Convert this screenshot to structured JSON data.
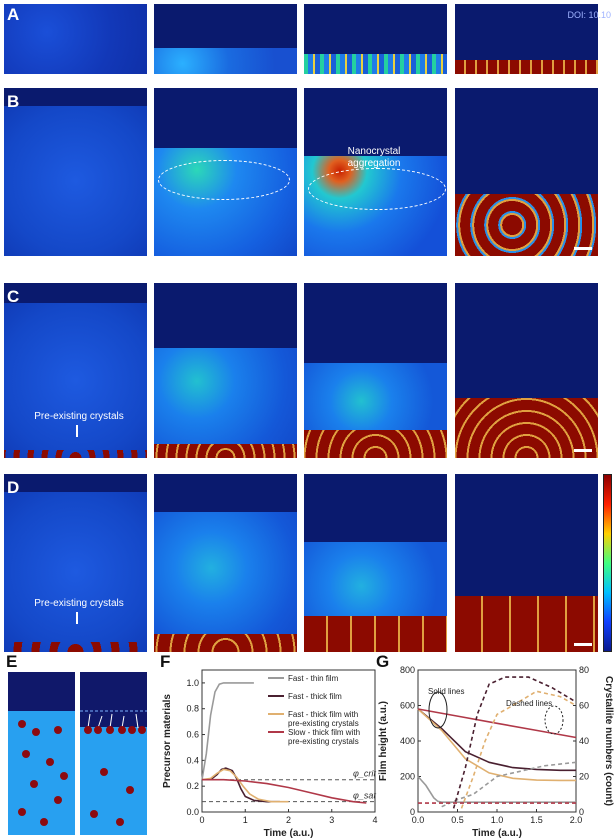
{
  "doi": "DOI: 10.10",
  "rows": [
    {
      "label": "A"
    },
    {
      "label": "B",
      "annotation": "Nanocrystal\naggregation"
    },
    {
      "label": "C",
      "annotation": "Pre-existing crystals"
    },
    {
      "label": "D",
      "annotation": "Pre-existing crystals"
    }
  ],
  "panel_e": {
    "label": "E"
  },
  "chart_data": [
    {
      "panel": "F",
      "type": "line",
      "xlabel": "Time (a.u.)",
      "ylabel": "Precursor materials",
      "xlim": [
        0,
        4
      ],
      "ylim": [
        0,
        1.1
      ],
      "xticks": [
        "0",
        "1",
        "2",
        "3",
        "4"
      ],
      "yticks": [
        "0.0",
        "0.2",
        "0.4",
        "0.6",
        "0.8",
        "1.0"
      ],
      "reference_lines": [
        {
          "label": "φ_crit",
          "y": 0.25
        },
        {
          "label": "φ_sat",
          "y": 0.08
        }
      ],
      "legend_position": "top-right",
      "series": [
        {
          "name": "Fast - thin film",
          "color": "#9a9a9a",
          "x": [
            0,
            0.1,
            0.2,
            0.3,
            0.4,
            0.5,
            0.7,
            1.0,
            1.2
          ],
          "y": [
            0.25,
            0.45,
            0.75,
            0.93,
            0.99,
            1.0,
            1.0,
            1.0,
            1.0
          ]
        },
        {
          "name": "Fast - thick film",
          "color": "#4a2030",
          "x": [
            0,
            0.2,
            0.35,
            0.45,
            0.55,
            0.7,
            0.8,
            0.9,
            1.0,
            1.2,
            1.5,
            1.8
          ],
          "y": [
            0.25,
            0.25,
            0.29,
            0.33,
            0.34,
            0.32,
            0.26,
            0.18,
            0.12,
            0.09,
            0.08,
            0.08
          ]
        },
        {
          "name": "Fast - thick film with pre-existing crystals",
          "color": "#e0b070",
          "x": [
            0,
            0.2,
            0.35,
            0.5,
            0.65,
            0.8,
            0.95,
            1.1,
            1.3,
            1.6,
            2.0
          ],
          "y": [
            0.25,
            0.26,
            0.3,
            0.33,
            0.32,
            0.27,
            0.2,
            0.14,
            0.1,
            0.08,
            0.08
          ]
        },
        {
          "name": "Slow - thick film with pre-existing crystals",
          "color": "#b03848",
          "x": [
            0,
            0.5,
            1.0,
            1.5,
            2.0,
            2.5,
            3.0,
            3.5,
            3.8
          ],
          "y": [
            0.25,
            0.25,
            0.24,
            0.22,
            0.19,
            0.15,
            0.11,
            0.08,
            0.07
          ]
        }
      ]
    },
    {
      "panel": "G",
      "type": "line",
      "xlabel": "Time (a.u.)",
      "ylabel": "Film height (a.u.)",
      "y2label": "Crystallite numbers (count)",
      "xlim": [
        0,
        2
      ],
      "ylim": [
        0,
        800
      ],
      "y2lim": [
        0,
        80
      ],
      "xticks": [
        "0.0",
        "0.5",
        "1.0",
        "1.5",
        "2.0"
      ],
      "yticks": [
        "0",
        "200",
        "400",
        "600",
        "800"
      ],
      "y2ticks": [
        "0",
        "20",
        "40",
        "60",
        "80"
      ],
      "annotations": [
        "Solid lines",
        "Dashed lines"
      ],
      "series": [
        {
          "name": "Fast - thin film height",
          "style": "solid",
          "color": "#9a9a9a",
          "x": [
            0,
            0.1,
            0.2,
            0.25,
            0.3,
            0.5,
            1.0,
            2.0
          ],
          "y": [
            200,
            150,
            80,
            60,
            55,
            55,
            55,
            55
          ]
        },
        {
          "name": "Fast - thick film height",
          "style": "solid",
          "color": "#4a2030",
          "x": [
            0,
            0.3,
            0.6,
            0.9,
            1.2,
            1.5,
            1.8,
            2.0
          ],
          "y": [
            580,
            470,
            340,
            280,
            250,
            240,
            235,
            235
          ]
        },
        {
          "name": "Fast - thick film pre-existing height",
          "style": "solid",
          "color": "#e0b070",
          "x": [
            0,
            0.3,
            0.6,
            0.9,
            1.2,
            1.5,
            1.8,
            2.0
          ],
          "y": [
            580,
            460,
            300,
            220,
            190,
            180,
            178,
            178
          ]
        },
        {
          "name": "Slow - thick film pre-existing height",
          "style": "solid",
          "color": "#b03848",
          "x": [
            0,
            0.5,
            1.0,
            1.5,
            2.0
          ],
          "y": [
            580,
            540,
            500,
            460,
            420
          ]
        },
        {
          "name": "Fast - thin film count",
          "style": "dashed",
          "color": "#9a9a9a",
          "x": [
            0.3,
            0.5,
            0.7,
            1.0,
            1.3,
            1.6,
            2.0
          ],
          "y2": [
            3,
            7,
            10,
            20,
            23,
            26,
            28
          ]
        },
        {
          "name": "Fast - thick film count",
          "style": "dashed",
          "color": "#4a2030",
          "x": [
            0.45,
            0.6,
            0.75,
            0.9,
            1.1,
            1.4,
            1.7,
            2.0
          ],
          "y2": [
            2,
            25,
            55,
            72,
            76,
            76,
            70,
            62
          ]
        },
        {
          "name": "Fast - thick film pre-existing count",
          "style": "dashed",
          "color": "#e0b070",
          "x": [
            0.55,
            0.7,
            0.85,
            1.0,
            1.2,
            1.5,
            1.8,
            2.0
          ],
          "y2": [
            2,
            20,
            40,
            55,
            60,
            68,
            65,
            60
          ]
        },
        {
          "name": "Slow - thick film pre-existing count",
          "style": "dashed",
          "color": "#b03848",
          "x": [
            0,
            0.5,
            1.0,
            1.5,
            2.0
          ],
          "y2": [
            5,
            5,
            5,
            5,
            5
          ]
        }
      ]
    }
  ]
}
